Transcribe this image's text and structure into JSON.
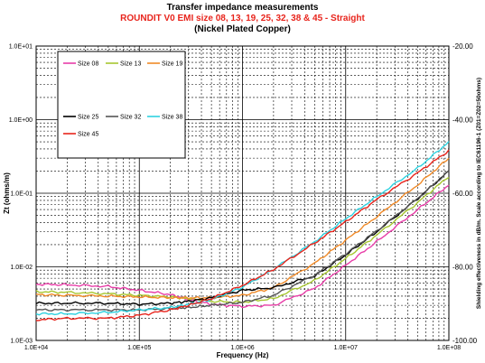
{
  "chart_data": {
    "type": "line",
    "title": "Transfer impedance measurements",
    "subtitle": "ROUNDIT V0 EMI size 08, 13, 19, 25, 32, 38 & 45 - Straight",
    "subtitle2": "(Nickel Plated Copper)",
    "xlabel": "Frequency (Hz)",
    "ylabel": "Zt (ohms/m)",
    "y2label": "Shielding effectiveness in dB/m. Scale according to IEC61196-1 (Z01=Z02=50ohms)",
    "x_scale": "log",
    "y_scale": "log",
    "xlim": [
      10000,
      100000000
    ],
    "ylim": [
      0.001,
      10
    ],
    "y2lim": [
      -100,
      -20
    ],
    "x_ticks": [
      "1.0E+04",
      "1.0E+05",
      "1.0E+06",
      "1.0E+07",
      "1.0E+08"
    ],
    "y_ticks": [
      "1.0E-03",
      "1.0E-02",
      "1.0E-01",
      "1.0E+00",
      "1.0E+01"
    ],
    "y2_ticks": [
      "-100.00",
      "-80.00",
      "-60.00",
      "-40.00",
      "-20.00"
    ],
    "grid": true,
    "legend_position": "top-left",
    "x": [
      10000,
      20000,
      50000,
      100000,
      200000,
      300000,
      500000,
      1000000,
      2000000,
      5000000,
      10000000,
      20000000,
      50000000,
      100000000
    ],
    "series": [
      {
        "name": "Size 08",
        "color": "#e83ea8",
        "values": [
          0.0058,
          0.0057,
          0.0054,
          0.0048,
          0.0042,
          0.0036,
          0.0031,
          0.0029,
          0.003,
          0.0051,
          0.0105,
          0.022,
          0.06,
          0.13
        ]
      },
      {
        "name": "Size 13",
        "color": "#a7c730",
        "values": [
          0.0046,
          0.0045,
          0.0043,
          0.0041,
          0.0039,
          0.0037,
          0.0034,
          0.0033,
          0.0037,
          0.0065,
          0.013,
          0.027,
          0.075,
          0.17
        ]
      },
      {
        "name": "Size 19",
        "color": "#f08a28",
        "values": [
          0.0042,
          0.0041,
          0.004,
          0.0039,
          0.0038,
          0.0038,
          0.0038,
          0.0041,
          0.0052,
          0.0112,
          0.023,
          0.048,
          0.13,
          0.3
        ]
      },
      {
        "name": "Size 25",
        "color": "#000000",
        "values": [
          0.0032,
          0.0032,
          0.0032,
          0.0031,
          0.0032,
          0.0034,
          0.0038,
          0.0048,
          0.0052,
          0.0075,
          0.0145,
          0.03,
          0.085,
          0.2
        ]
      },
      {
        "name": "Size 32",
        "color": "#555555",
        "values": [
          0.0026,
          0.0026,
          0.0026,
          0.0026,
          0.0027,
          0.0028,
          0.003,
          0.0033,
          0.0041,
          0.0077,
          0.015,
          0.031,
          0.085,
          0.2
        ]
      },
      {
        "name": "Size 38",
        "color": "#2fd2e0",
        "values": [
          0.0023,
          0.0023,
          0.0024,
          0.0026,
          0.0028,
          0.0031,
          0.0036,
          0.0053,
          0.0093,
          0.022,
          0.045,
          0.09,
          0.22,
          0.5
        ]
      },
      {
        "name": "Size 45",
        "color": "#e8241c",
        "values": [
          0.0019,
          0.002,
          0.002,
          0.0022,
          0.0026,
          0.003,
          0.0037,
          0.0056,
          0.0092,
          0.021,
          0.041,
          0.082,
          0.19,
          0.38
        ]
      }
    ]
  }
}
